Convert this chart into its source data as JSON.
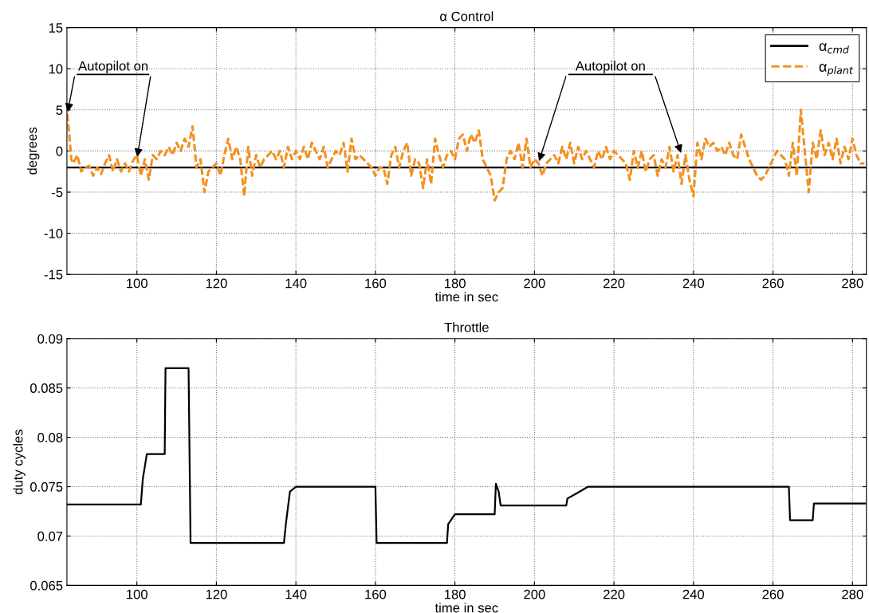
{
  "chart_data": [
    {
      "type": "line",
      "title": "α Control",
      "xlabel": "time in sec",
      "ylabel": "degrees",
      "xlim": [
        82.4,
        283.5
      ],
      "xticks": [
        100,
        120,
        140,
        160,
        180,
        200,
        220,
        240,
        260,
        280
      ],
      "ylim": [
        -15,
        15
      ],
      "yticks": [
        -15,
        -10,
        -5,
        0,
        5,
        10,
        15
      ],
      "grid": true,
      "legend": "top right",
      "series": [
        {
          "name": "α$_{cmd}$",
          "color": "#000000",
          "line_style": "solid",
          "x": [
            82.4,
            283.5
          ],
          "values": [
            -2,
            -2
          ]
        },
        {
          "name": "α$_{plant}$",
          "color": "#f39020",
          "line_style": "dashed",
          "x": [
            82.5,
            83,
            83.5,
            84,
            85,
            86,
            87,
            88,
            89,
            90,
            91,
            92,
            93,
            94,
            95,
            96,
            97,
            98,
            99,
            100,
            101,
            102,
            103,
            104,
            105,
            106,
            107,
            108,
            109,
            110,
            111,
            112,
            113,
            114,
            115,
            116,
            117,
            118,
            119,
            120,
            121,
            122,
            123,
            124,
            125,
            126,
            127,
            128,
            129,
            130,
            131,
            132,
            133,
            134,
            135,
            136,
            137,
            138,
            139,
            140,
            141,
            142,
            143,
            144,
            145,
            146,
            147,
            148,
            149,
            150,
            151,
            152,
            153,
            154,
            155,
            156,
            157,
            158,
            159,
            160,
            161,
            162,
            163,
            164,
            165,
            166,
            167,
            168,
            169,
            170,
            171,
            172,
            173,
            174,
            175,
            176,
            177,
            178,
            179,
            180,
            181,
            182,
            183,
            184,
            185,
            186,
            187,
            188,
            189,
            190,
            191,
            192,
            193,
            194,
            195,
            196,
            197,
            198,
            199,
            200,
            201,
            202,
            203,
            204,
            205,
            206,
            207,
            208,
            209,
            210,
            211,
            212,
            213,
            214,
            215,
            216,
            217,
            218,
            219,
            220,
            221,
            222,
            223,
            224,
            225,
            226,
            227,
            228,
            229,
            230,
            231,
            232,
            233,
            234,
            235,
            236,
            237,
            238,
            239,
            240,
            241,
            242,
            243,
            244,
            245,
            246,
            247,
            248,
            249,
            250,
            251,
            252,
            253,
            254,
            255,
            256,
            257,
            258,
            259,
            260,
            261,
            262,
            263,
            264,
            265,
            266,
            267,
            268,
            269,
            270,
            271,
            272,
            273,
            274,
            275,
            276,
            277,
            278,
            279,
            280,
            281,
            282,
            283
          ],
          "values": [
            4.5,
            2,
            -1,
            -1.5,
            -0.5,
            -2.5,
            -2,
            -1.8,
            -3,
            -2,
            -2.8,
            -1.5,
            -0.5,
            -2.5,
            -1,
            -2.5,
            -1.5,
            -2.5,
            -1.2,
            -0.5,
            -3,
            -1,
            -3.5,
            -0.5,
            -1,
            0,
            -0.5,
            0.5,
            -0.5,
            1,
            0,
            1.5,
            0.5,
            3,
            -2,
            -1,
            -5,
            -2.5,
            -2,
            -1.5,
            -3,
            -0.5,
            1.5,
            -1,
            0.5,
            -1,
            -5.5,
            0.5,
            -3,
            -0.5,
            -2,
            -1,
            -0.5,
            0,
            -1,
            0,
            -2,
            0.5,
            -1,
            0,
            -1,
            0.5,
            -1,
            1,
            0,
            -1,
            0.5,
            -2,
            -1,
            0,
            -0.5,
            1,
            -2.5,
            1.5,
            -1,
            -0.5,
            -1,
            -1.5,
            -2,
            -3,
            -2,
            -2,
            -4,
            -0.5,
            0.5,
            -2,
            0,
            1,
            -3,
            -1,
            -1.5,
            -4.5,
            -1,
            -4,
            1.5,
            -0.5,
            -2,
            -0.5,
            0,
            -1,
            1.5,
            2,
            0,
            2,
            1,
            2.5,
            -1,
            -2,
            -3,
            -6,
            -5,
            -4.5,
            -1,
            0,
            -1,
            1,
            -2,
            1.5,
            -2,
            -1,
            -1.5,
            -3,
            -1.5,
            -1,
            -0.5,
            -1.5,
            0.5,
            -1,
            1,
            -1.5,
            0.5,
            -1,
            0,
            -1,
            -2,
            0,
            -1,
            0.5,
            -1,
            0,
            -0.5,
            -1,
            -1.5,
            -3.5,
            0,
            -2,
            0,
            -2.5,
            -1,
            -0.5,
            -3,
            -1,
            -2,
            0.5,
            -2.5,
            -0.5,
            -4,
            -0.5,
            -3.5,
            -5.5,
            1,
            -1,
            1.5,
            0.5,
            1,
            0,
            0.5,
            -0.5,
            1,
            -0.5,
            -1,
            2,
            0.5,
            -1,
            -2,
            -3,
            -3.5,
            -3,
            -2,
            -1,
            0,
            -0.5,
            -1,
            -3,
            1,
            -3,
            5,
            0,
            -5,
            1,
            -1,
            2.5,
            -0.5,
            1,
            -1,
            1.5,
            -1.5,
            0.5,
            -1,
            1.5,
            -0.5,
            -1.5,
            -1.5
          ]
        }
      ],
      "annotations": [
        {
          "text": "Autopilot on",
          "x": 82.5,
          "y": 4.5
        },
        {
          "text": "Autopilot on",
          "x": 201,
          "y": -1.5
        }
      ]
    },
    {
      "type": "line",
      "title": "Throttle",
      "xlabel": "time in sec",
      "ylabel": "duty cycles",
      "xlim": [
        82.4,
        283.5
      ],
      "xticks": [
        100,
        120,
        140,
        160,
        180,
        200,
        220,
        240,
        260,
        280
      ],
      "ylim": [
        0.065,
        0.09
      ],
      "yticks": [
        0.065,
        0.07,
        0.075,
        0.08,
        0.085,
        0.09
      ],
      "grid": true,
      "series": [
        {
          "color": "#000000",
          "line_style": "solid",
          "x": [
            82.4,
            101,
            101.5,
            102.5,
            107,
            107.2,
            113,
            113.5,
            137,
            137.5,
            138.5,
            140,
            160,
            160.3,
            178,
            178.3,
            180,
            190,
            190.3,
            191,
            191.5,
            208,
            208.3,
            210.5,
            213.5,
            264,
            264.3,
            270,
            270.3,
            283.5
          ],
          "values": [
            0.0732,
            0.0732,
            0.0758,
            0.0783,
            0.0783,
            0.087,
            0.087,
            0.0693,
            0.0693,
            0.0713,
            0.0745,
            0.075,
            0.075,
            0.0693,
            0.0693,
            0.0712,
            0.0722,
            0.0722,
            0.0753,
            0.0745,
            0.0731,
            0.0731,
            0.0738,
            0.0743,
            0.075,
            0.075,
            0.0716,
            0.0716,
            0.0733,
            0.0733
          ]
        }
      ]
    }
  ]
}
